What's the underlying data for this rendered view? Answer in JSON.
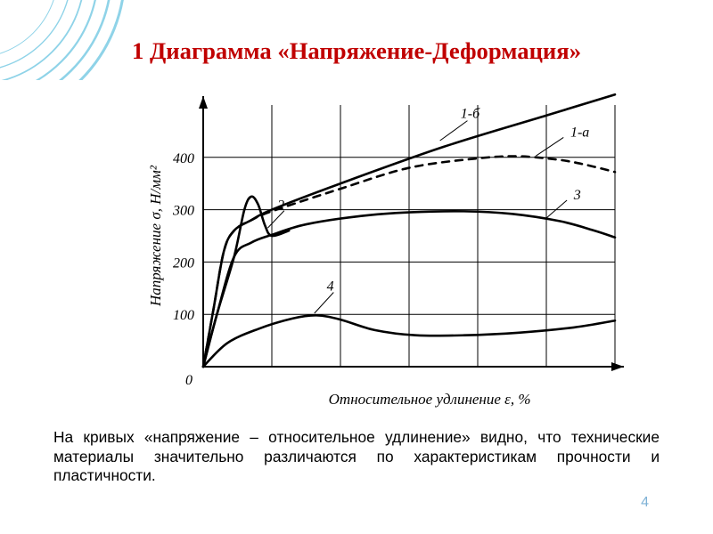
{
  "decoration": {
    "arc_stroke": "#8fd3e8",
    "arc_widths": [
      1,
      1.4,
      1.8,
      2.2,
      2.6,
      3.0
    ],
    "arc_radii": [
      95,
      110,
      125,
      140,
      155,
      170
    ]
  },
  "title": {
    "text": "1 Диаграмма «Напряжение-Деформация»",
    "color": "#c00000",
    "fontsize_pt": 20
  },
  "caption": {
    "text": "На кривых «напряжение – относительное удлинение» видно, что технические материалы значительно различаются по характеристикам прочности и пластичности.",
    "color": "#000000",
    "fontsize_pt": 13
  },
  "page_number": {
    "value": "4",
    "color": "#7fb2d6",
    "fontsize_pt": 12
  },
  "chart": {
    "type": "line",
    "background_color": "#ffffff",
    "axis_color": "#000000",
    "grid_color": "#000000",
    "axis_line_width": 2.0,
    "grid_line_width": 1.0,
    "font_color": "#000000",
    "tick_fontsize_pt": 16,
    "label_fontsize_pt": 17,
    "ylabel": "Напряжение σ, Н/мм²",
    "xlabel": "Относительное удлинение ε, %",
    "origin_label": "0",
    "xlim": [
      0,
      6
    ],
    "ylim": [
      0,
      500
    ],
    "x_grid": [
      1,
      2,
      3,
      4,
      5,
      6
    ],
    "y_ticks": [
      100,
      200,
      300,
      400
    ],
    "arrow_len": 14,
    "series": [
      {
        "id": "1b",
        "label": "1-б",
        "label_pos": [
          3.75,
          475
        ],
        "color": "#000000",
        "dash": "none",
        "width": 2.6,
        "points": [
          [
            0,
            0
          ],
          [
            0.15,
            110
          ],
          [
            0.3,
            220
          ],
          [
            0.45,
            260
          ],
          [
            0.7,
            280
          ],
          [
            1.0,
            300
          ],
          [
            2.0,
            350
          ],
          [
            3.5,
            420
          ],
          [
            5.0,
            480
          ],
          [
            6.0,
            520
          ]
        ]
      },
      {
        "id": "1a",
        "label": "1-а",
        "label_pos": [
          5.35,
          440
        ],
        "color": "#000000",
        "dash": "8,7",
        "width": 2.6,
        "points": [
          [
            0,
            0
          ],
          [
            0.15,
            110
          ],
          [
            0.3,
            220
          ],
          [
            0.45,
            260
          ],
          [
            0.7,
            280
          ],
          [
            1.0,
            297
          ],
          [
            2.0,
            340
          ],
          [
            3.0,
            380
          ],
          [
            4.0,
            398
          ],
          [
            4.6,
            402
          ],
          [
            5.2,
            395
          ],
          [
            5.6,
            385
          ],
          [
            6.0,
            372
          ]
        ]
      },
      {
        "id": "2",
        "label": "2",
        "label_pos": [
          1.08,
          300
        ],
        "color": "#000000",
        "dash": "none",
        "width": 2.6,
        "points": [
          [
            0,
            0
          ],
          [
            0.2,
            100
          ],
          [
            0.45,
            210
          ],
          [
            0.6,
            300
          ],
          [
            0.7,
            325
          ],
          [
            0.8,
            310
          ],
          [
            0.9,
            270
          ],
          [
            1.0,
            250
          ],
          [
            1.25,
            260
          ]
        ]
      },
      {
        "id": "3",
        "label": "3",
        "label_pos": [
          5.4,
          320
        ],
        "color": "#000000",
        "dash": "none",
        "width": 2.6,
        "points": [
          [
            0,
            0
          ],
          [
            0.2,
            100
          ],
          [
            0.45,
            210
          ],
          [
            0.7,
            237
          ],
          [
            1.0,
            252
          ],
          [
            1.5,
            272
          ],
          [
            2.3,
            288
          ],
          [
            3.0,
            295
          ],
          [
            3.8,
            297
          ],
          [
            4.5,
            292
          ],
          [
            5.2,
            278
          ],
          [
            5.7,
            260
          ],
          [
            6.0,
            247
          ]
        ]
      },
      {
        "id": "4",
        "label": "4",
        "label_pos": [
          1.8,
          145
        ],
        "color": "#000000",
        "dash": "none",
        "width": 2.6,
        "points": [
          [
            0,
            0
          ],
          [
            0.35,
            45
          ],
          [
            0.8,
            72
          ],
          [
            1.3,
            92
          ],
          [
            1.65,
            98
          ],
          [
            2.0,
            90
          ],
          [
            2.5,
            70
          ],
          [
            3.1,
            60
          ],
          [
            3.8,
            60
          ],
          [
            4.6,
            65
          ],
          [
            5.4,
            75
          ],
          [
            6.0,
            88
          ]
        ]
      }
    ],
    "label_pointer": {
      "stroke": "#000000",
      "width": 1.0,
      "lines": [
        {
          "from": [
            3.85,
            470
          ],
          "to": [
            3.45,
            432
          ]
        },
        {
          "from": [
            5.25,
            438
          ],
          "to": [
            4.85,
            403
          ]
        },
        {
          "from": [
            1.18,
            298
          ],
          "to": [
            0.94,
            265
          ]
        },
        {
          "from": [
            5.3,
            318
          ],
          "to": [
            5.0,
            284
          ]
        },
        {
          "from": [
            1.9,
            142
          ],
          "to": [
            1.62,
            102
          ]
        }
      ]
    }
  }
}
